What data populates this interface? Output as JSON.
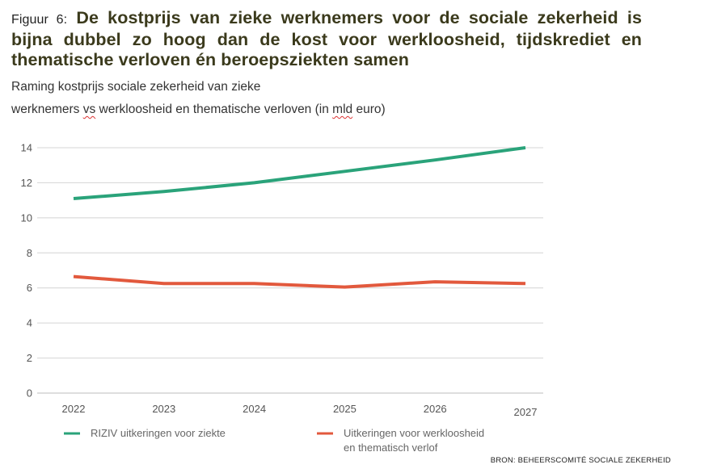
{
  "heading": {
    "prefix": "Figuur 6:",
    "title": "De kostprijs van zieke werknemers voor de sociale zekerheid is bijna dubbel zo hoog dan de kost voor werkloosheid, tijdskrediet en thematische verloven én beroepsziekten samen"
  },
  "subtitle": {
    "line1": "Raming kostprijs sociale zekerheid van zieke",
    "line2_pre": "werknemers ",
    "line2_vs": "vs",
    "line2_mid": " werkloosheid en thematische verloven (in ",
    "line2_mld": "mld",
    "line2_post": " euro)"
  },
  "chart_data": {
    "type": "line",
    "x": [
      "2022",
      "2023",
      "2024",
      "2025",
      "2026",
      "2027"
    ],
    "ylim": [
      0,
      14
    ],
    "yticks": [
      0,
      2,
      4,
      6,
      8,
      10,
      12,
      14
    ],
    "grid": true,
    "legend_position": "bottom",
    "series": [
      {
        "name": "RIZIV uitkeringen voor ziekte",
        "color": "#2aa37a",
        "values": [
          11.1,
          11.5,
          12.0,
          12.65,
          13.3,
          14.0
        ]
      },
      {
        "name": "Uitkeringen voor werkloosheid en thematisch verlof",
        "legend_lines": [
          "Uitkeringen voor werkloosheid",
          "en thematisch verlof"
        ],
        "color": "#e2593d",
        "values": [
          6.65,
          6.25,
          6.25,
          6.05,
          6.35,
          6.25
        ]
      }
    ]
  },
  "source": "BRON: BEHEERSCOMITÉ SOCIALE ZEKERHEID"
}
